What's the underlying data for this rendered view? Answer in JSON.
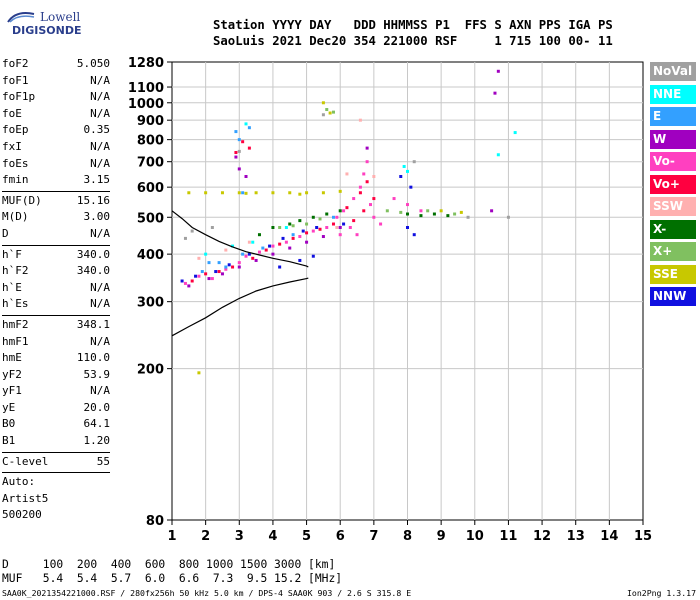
{
  "logo": {
    "line1": "Lowell",
    "line2": "DIGISONDE"
  },
  "header": {
    "row1": "Station YYYY DAY   DDD HHMMSS P1  FFS S AXN PPS IGA PS",
    "row2": "SaoLuis 2021 Dec20 354 221000 RSF     1 715 100 00- 11"
  },
  "params": [
    {
      "k": "foF2",
      "v": "5.050"
    },
    {
      "k": "foF1",
      "v": "N/A"
    },
    {
      "k": "foF1p",
      "v": "N/A"
    },
    {
      "k": "foE",
      "v": "N/A"
    },
    {
      "k": "foEp",
      "v": "0.35"
    },
    {
      "k": "fxI",
      "v": "N/A"
    },
    {
      "k": "foEs",
      "v": "N/A"
    },
    {
      "k": "fmin",
      "v": "3.15"
    },
    {
      "sep": true
    },
    {
      "k": "MUF(D)",
      "v": "15.16"
    },
    {
      "k": "M(D)",
      "v": "3.00"
    },
    {
      "k": "D",
      "v": "N/A"
    },
    {
      "sep": true
    },
    {
      "k": "h`F",
      "v": "340.0"
    },
    {
      "k": "h`F2",
      "v": "340.0"
    },
    {
      "k": "h`E",
      "v": "N/A"
    },
    {
      "k": "h`Es",
      "v": "N/A"
    },
    {
      "sep": true
    },
    {
      "k": "hmF2",
      "v": "348.1"
    },
    {
      "k": "hmF1",
      "v": "N/A"
    },
    {
      "k": "hmE",
      "v": "110.0"
    },
    {
      "k": "yF2",
      "v": "53.9"
    },
    {
      "k": "yF1",
      "v": "N/A"
    },
    {
      "k": "yE",
      "v": "20.0"
    },
    {
      "k": "B0",
      "v": "64.1"
    },
    {
      "k": "B1",
      "v": "1.20"
    },
    {
      "sep": true
    },
    {
      "k": "C-level",
      "v": "55"
    },
    {
      "sep": true
    }
  ],
  "auto": [
    "Auto:",
    "Artist5",
    "500200"
  ],
  "legend": [
    {
      "label": "NoVal",
      "color": "#a0a0a0"
    },
    {
      "label": "NNE",
      "color": "#00ffff"
    },
    {
      "label": "E",
      "color": "#33a0ff"
    },
    {
      "label": "W",
      "color": "#a000c0"
    },
    {
      "label": "Vo-",
      "color": "#ff40c0"
    },
    {
      "label": "Vo+",
      "color": "#ff0040"
    },
    {
      "label": "SSW",
      "color": "#ffb0b0"
    },
    {
      "label": "X-",
      "color": "#007000"
    },
    {
      "label": "X+",
      "color": "#80c060"
    },
    {
      "label": "SSE",
      "color": "#c8c800"
    },
    {
      "label": "NNW",
      "color": "#1010e0"
    }
  ],
  "footer": {
    "line1": "D     100  200  400  600  800 1000 1500 3000 [km]",
    "line2": "MUF   5.4  5.4  5.7  6.0  6.6  7.3  9.5 15.2 [MHz]"
  },
  "bottom": {
    "left": "SAA0K_2021354221000.RSF / 280fx256h 50 kHz 5.0 km / DPS-4 SAA0K 903 / 2.6 S 315.8 E",
    "right": "Ion2Png 1.3.17"
  },
  "chart_data": {
    "type": "scatter",
    "title": "",
    "xlabel": "",
    "ylabel": "",
    "xlim": [
      1,
      15
    ],
    "ylim": [
      80,
      1280
    ],
    "y_scale": "log",
    "x_ticks": [
      1,
      2,
      3,
      4,
      5,
      6,
      7,
      8,
      9,
      10,
      11,
      12,
      13,
      14,
      15
    ],
    "y_ticks": [
      80,
      200,
      300,
      400,
      500,
      600,
      700,
      800,
      900,
      1000,
      1100,
      1280
    ],
    "grid": true,
    "series": [
      {
        "color": "#ff40c0",
        "points": [
          [
            1.4,
            335
          ],
          [
            1.8,
            350
          ],
          [
            2.2,
            345
          ],
          [
            2.6,
            365
          ],
          [
            3.0,
            380
          ],
          [
            3.2,
            395
          ],
          [
            3.6,
            405
          ],
          [
            4.0,
            420
          ],
          [
            4.4,
            430
          ],
          [
            4.8,
            445
          ],
          [
            5.2,
            460
          ],
          [
            5.6,
            470
          ],
          [
            6.1,
            520
          ],
          [
            6.4,
            560
          ],
          [
            6.6,
            600
          ],
          [
            6.7,
            650
          ],
          [
            6.8,
            700
          ],
          [
            6.9,
            540
          ],
          [
            7.0,
            500
          ],
          [
            7.2,
            480
          ],
          [
            6.3,
            470
          ],
          [
            6.5,
            450
          ],
          [
            5.9,
            500
          ],
          [
            6.0,
            450
          ],
          [
            7.6,
            560
          ],
          [
            8.0,
            540
          ],
          [
            8.4,
            520
          ]
        ]
      },
      {
        "color": "#ff0040",
        "points": [
          [
            1.6,
            340
          ],
          [
            2.0,
            355
          ],
          [
            2.4,
            360
          ],
          [
            2.8,
            370
          ],
          [
            3.4,
            390
          ],
          [
            3.8,
            410
          ],
          [
            4.2,
            425
          ],
          [
            4.6,
            440
          ],
          [
            5.0,
            455
          ],
          [
            5.4,
            465
          ],
          [
            6.2,
            530
          ],
          [
            6.6,
            580
          ],
          [
            6.8,
            620
          ],
          [
            7.0,
            560
          ],
          [
            6.4,
            490
          ],
          [
            6.7,
            520
          ],
          [
            5.8,
            480
          ],
          [
            3.1,
            790
          ],
          [
            2.9,
            740
          ],
          [
            3.3,
            760
          ]
        ]
      },
      {
        "color": "#a000c0",
        "points": [
          [
            1.5,
            330
          ],
          [
            2.1,
            345
          ],
          [
            2.5,
            355
          ],
          [
            3.0,
            370
          ],
          [
            3.5,
            385
          ],
          [
            4.0,
            400
          ],
          [
            4.5,
            415
          ],
          [
            5.0,
            430
          ],
          [
            5.5,
            445
          ],
          [
            6.0,
            470
          ],
          [
            3.0,
            670
          ],
          [
            2.9,
            720
          ],
          [
            3.2,
            640
          ],
          [
            6.8,
            760
          ],
          [
            10.7,
            1210
          ],
          [
            10.6,
            1060
          ],
          [
            10.5,
            520
          ]
        ]
      },
      {
        "color": "#1010e0",
        "points": [
          [
            1.3,
            340
          ],
          [
            1.7,
            350
          ],
          [
            2.3,
            360
          ],
          [
            2.7,
            375
          ],
          [
            3.3,
            400
          ],
          [
            3.9,
            420
          ],
          [
            4.3,
            440
          ],
          [
            4.9,
            460
          ],
          [
            5.3,
            470
          ],
          [
            6.1,
            480
          ],
          [
            4.8,
            385
          ],
          [
            5.2,
            395
          ],
          [
            7.8,
            640
          ],
          [
            8.1,
            600
          ],
          [
            8.0,
            470
          ],
          [
            8.2,
            450
          ],
          [
            4.2,
            370
          ]
        ]
      },
      {
        "color": "#33a0ff",
        "points": [
          [
            1.9,
            360
          ],
          [
            2.4,
            380
          ],
          [
            3.1,
            400
          ],
          [
            3.7,
            415
          ],
          [
            4.6,
            450
          ],
          [
            5.8,
            500
          ],
          [
            2.9,
            840
          ],
          [
            3.0,
            800
          ],
          [
            3.3,
            860
          ],
          [
            3.1,
            580
          ],
          [
            2.1,
            380
          ],
          [
            2.6,
            370
          ]
        ]
      },
      {
        "color": "#00ffff",
        "points": [
          [
            2.0,
            400
          ],
          [
            2.8,
            420
          ],
          [
            3.4,
            430
          ],
          [
            4.4,
            470
          ],
          [
            7.9,
            680
          ],
          [
            8.0,
            660
          ],
          [
            10.7,
            730
          ],
          [
            11.2,
            835
          ],
          [
            3.2,
            880
          ]
        ]
      },
      {
        "color": "#c8c800",
        "points": [
          [
            1.5,
            580
          ],
          [
            2.0,
            580
          ],
          [
            2.5,
            580
          ],
          [
            3.0,
            580
          ],
          [
            3.5,
            580
          ],
          [
            4.0,
            580
          ],
          [
            4.5,
            580
          ],
          [
            5.0,
            580
          ],
          [
            5.5,
            580
          ],
          [
            6.0,
            585
          ],
          [
            3.2,
            578
          ],
          [
            4.8,
            575
          ],
          [
            9.0,
            520
          ],
          [
            9.6,
            515
          ],
          [
            1.8,
            195
          ],
          [
            5.5,
            1000
          ],
          [
            5.7,
            940
          ]
        ]
      },
      {
        "color": "#007000",
        "points": [
          [
            4.5,
            480
          ],
          [
            4.8,
            490
          ],
          [
            5.2,
            500
          ],
          [
            5.6,
            510
          ],
          [
            6.0,
            520
          ],
          [
            8.0,
            510
          ],
          [
            8.4,
            505
          ],
          [
            8.8,
            510
          ],
          [
            9.2,
            505
          ],
          [
            4.0,
            470
          ],
          [
            3.6,
            450
          ]
        ]
      },
      {
        "color": "#80c060",
        "points": [
          [
            4.2,
            470
          ],
          [
            4.6,
            475
          ],
          [
            5.0,
            480
          ],
          [
            5.4,
            495
          ],
          [
            7.4,
            520
          ],
          [
            7.8,
            515
          ],
          [
            8.6,
            520
          ],
          [
            9.4,
            510
          ],
          [
            5.8,
            945
          ],
          [
            5.6,
            960
          ]
        ]
      },
      {
        "color": "#ffb0b0",
        "points": [
          [
            1.8,
            390
          ],
          [
            2.6,
            410
          ],
          [
            3.3,
            430
          ],
          [
            6.6,
            900
          ],
          [
            6.2,
            650
          ],
          [
            5.9,
            470
          ],
          [
            7.0,
            640
          ]
        ]
      },
      {
        "color": "#a0a0a0",
        "points": [
          [
            1.4,
            440
          ],
          [
            1.6,
            460
          ],
          [
            2.2,
            470
          ],
          [
            5.5,
            930
          ],
          [
            3.0,
            745
          ],
          [
            8.2,
            700
          ],
          [
            9.8,
            500
          ],
          [
            11.0,
            500
          ]
        ]
      }
    ],
    "curves": [
      {
        "color": "#000000",
        "points": [
          [
            1,
            244
          ],
          [
            1.5,
            258
          ],
          [
            2,
            272
          ],
          [
            2.5,
            290
          ],
          [
            3,
            306
          ],
          [
            3.5,
            320
          ],
          [
            4,
            330
          ],
          [
            4.5,
            338
          ],
          [
            5,
            345
          ],
          [
            5.05,
            346
          ]
        ]
      },
      {
        "color": "#000000",
        "points": [
          [
            1,
            520
          ],
          [
            1.3,
            496
          ],
          [
            1.6,
            470
          ],
          [
            2,
            450
          ],
          [
            2.4,
            432
          ],
          [
            2.8,
            418
          ],
          [
            3.2,
            406
          ],
          [
            3.6,
            398
          ],
          [
            4.0,
            390
          ],
          [
            4.5,
            382
          ],
          [
            5.0,
            372
          ],
          [
            5.05,
            370
          ]
        ]
      }
    ]
  }
}
